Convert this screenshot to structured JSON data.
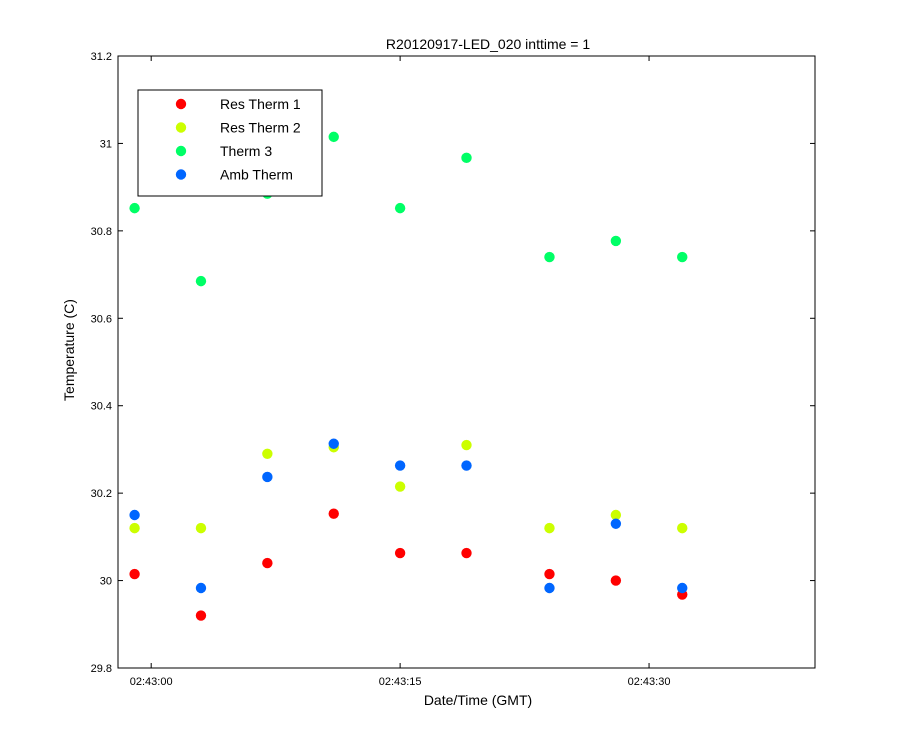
{
  "chart_data": {
    "type": "scatter",
    "title": "R20120917-LED_020 inttime = 1",
    "xlabel": "Date/Time (GMT)",
    "ylabel": "Temperature (C)",
    "ylim": [
      29.8,
      31.2
    ],
    "yticks": [
      29.8,
      30,
      30.2,
      30.4,
      30.6,
      30.8,
      31,
      31.2
    ],
    "ytick_labels": [
      "29.8",
      "30",
      "30.2",
      "30.4",
      "30.6",
      "30.8",
      "31",
      "31.2"
    ],
    "xlim": [
      "02:42:58",
      "02:43:40"
    ],
    "xticks": [
      "02:43:00",
      "02:43:15",
      "02:43:30"
    ],
    "grid": false,
    "legend_position": "top-left",
    "x": [
      "02:42:59",
      "02:43:03",
      "02:43:07",
      "02:43:11",
      "02:43:15",
      "02:43:19",
      "02:43:24",
      "02:43:28",
      "02:43:32"
    ],
    "series": [
      {
        "name": "Res Therm 1",
        "color": "#ff0000",
        "values": [
          30.015,
          29.92,
          30.04,
          30.153,
          30.063,
          30.063,
          30.015,
          30.0,
          29.968
        ]
      },
      {
        "name": "Res Therm 2",
        "color": "#ccff00",
        "values": [
          30.12,
          30.12,
          30.29,
          30.305,
          30.215,
          30.31,
          30.12,
          30.15,
          30.12
        ]
      },
      {
        "name": "Therm 3",
        "color": "#00ff66",
        "values": [
          30.852,
          30.685,
          30.885,
          31.015,
          30.852,
          30.967,
          30.74,
          30.777,
          30.74
        ]
      },
      {
        "name": "Amb Therm",
        "color": "#0066ff",
        "values": [
          30.15,
          29.983,
          30.237,
          30.313,
          30.263,
          30.263,
          29.983,
          30.13,
          29.983
        ]
      }
    ]
  }
}
